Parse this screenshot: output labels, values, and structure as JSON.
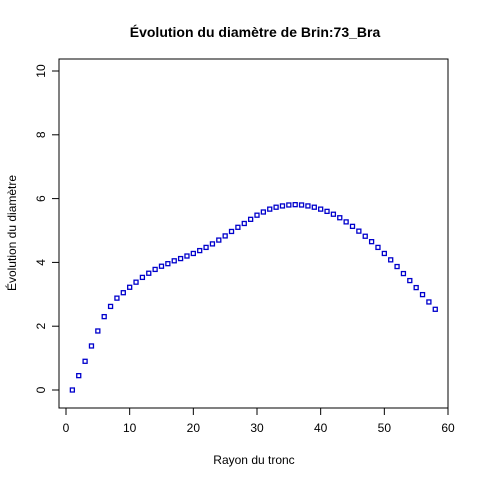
{
  "chart_data": {
    "type": "scatter",
    "title": "Évolution du diamètre de  Brin:73_Bra",
    "xlabel": "Rayon du tronc",
    "ylabel": "Évolution du diamètre",
    "xlim": [
      0,
      60
    ],
    "ylim": [
      0,
      10
    ],
    "x_ticks": [
      "0",
      "10",
      "20",
      "30",
      "40",
      "50",
      "60"
    ],
    "y_ticks": [
      "0",
      "2",
      "4",
      "6",
      "8",
      "10"
    ],
    "grid": false,
    "legend": "none",
    "marker": "open-square",
    "color": "#0000cc",
    "x": [
      1,
      2,
      3,
      4,
      5,
      6,
      7,
      8,
      9,
      10,
      11,
      12,
      13,
      14,
      15,
      16,
      17,
      18,
      19,
      20,
      21,
      22,
      23,
      24,
      25,
      26,
      27,
      28,
      29,
      30,
      31,
      32,
      33,
      34,
      35,
      36,
      37,
      38,
      39,
      40,
      41,
      42,
      43,
      44,
      45,
      46,
      47,
      48,
      49,
      50,
      51,
      52,
      53,
      54,
      55,
      56,
      57,
      58
    ],
    "values": [
      0.0,
      0.45,
      0.9,
      1.38,
      1.85,
      2.3,
      2.62,
      2.88,
      3.05,
      3.22,
      3.38,
      3.53,
      3.66,
      3.78,
      3.88,
      3.96,
      4.05,
      4.12,
      4.2,
      4.28,
      4.37,
      4.47,
      4.58,
      4.7,
      4.83,
      4.97,
      5.1,
      5.22,
      5.35,
      5.48,
      5.58,
      5.67,
      5.73,
      5.77,
      5.8,
      5.81,
      5.8,
      5.77,
      5.73,
      5.67,
      5.6,
      5.51,
      5.4,
      5.27,
      5.13,
      4.98,
      4.82,
      4.65,
      4.47,
      4.28,
      4.08,
      3.87,
      3.65,
      3.43,
      3.21,
      2.99,
      2.76,
      2.53
    ]
  }
}
